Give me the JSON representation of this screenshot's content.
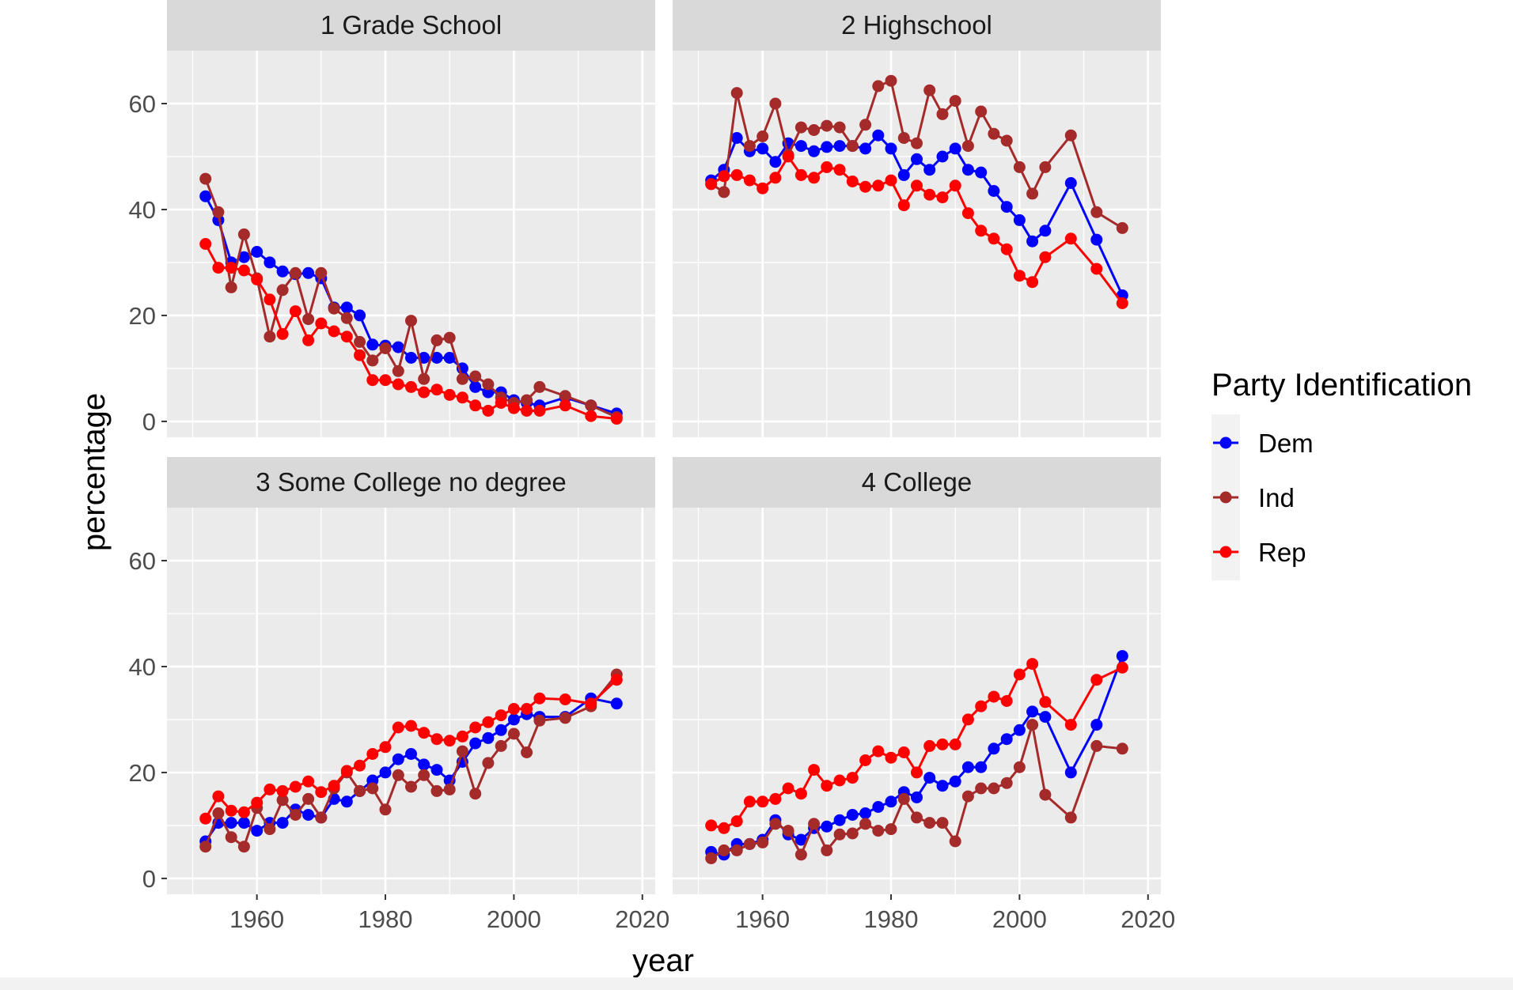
{
  "chart_data": {
    "type": "line",
    "xlabel": "year",
    "ylabel": "percentage",
    "xlim": [
      1946,
      2022
    ],
    "ylim": [
      -3,
      70
    ],
    "x_ticks": [
      1960,
      1980,
      2000,
      2020
    ],
    "y_ticks": [
      0,
      20,
      40,
      60
    ],
    "grid": true,
    "legend": {
      "title": "Party Identification",
      "position": "right"
    },
    "colors": {
      "Dem": "#0000ff",
      "Ind": "#a52a2a",
      "Rep": "#ff0000"
    },
    "series_names": [
      "Dem",
      "Ind",
      "Rep"
    ],
    "x": [
      1952,
      1954,
      1956,
      1958,
      1960,
      1962,
      1964,
      1966,
      1968,
      1970,
      1972,
      1974,
      1976,
      1978,
      1980,
      1982,
      1984,
      1986,
      1988,
      1990,
      1992,
      1994,
      1996,
      1998,
      2000,
      2002,
      2004,
      2008,
      2012,
      2016
    ],
    "panels": [
      {
        "title": "1 Grade School",
        "series": [
          {
            "name": "Dem",
            "values": [
              42.5,
              38,
              30,
              31,
              32,
              30,
              28.3,
              27.8,
              28,
              27,
              21.5,
              21.5,
              20,
              14.5,
              14.3,
              14,
              12,
              12,
              12,
              12,
              10,
              6.5,
              5.5,
              5.5,
              4,
              3.5,
              3,
              4.5,
              3,
              1.5
            ]
          },
          {
            "name": "Ind",
            "values": [
              45.8,
              39.5,
              25.3,
              35.3,
              27,
              16,
              24.8,
              28,
              19.3,
              28,
              21.3,
              19.5,
              15,
              11.5,
              13.8,
              9.5,
              19,
              8,
              15.3,
              15.8,
              8,
              8.5,
              7,
              4.5,
              3.5,
              4,
              6.5,
              4.8,
              3,
              0.8
            ]
          },
          {
            "name": "Rep",
            "values": [
              33.5,
              29,
              29,
              28.5,
              26.8,
              23,
              16.5,
              20.8,
              15.3,
              18.5,
              17,
              16,
              12.5,
              7.8,
              7.8,
              7,
              6.5,
              5.5,
              6,
              5,
              4.5,
              3,
              2,
              3.5,
              2.5,
              2,
              2,
              3,
              1,
              0.5
            ]
          }
        ]
      },
      {
        "title": "2 Highschool",
        "series": [
          {
            "name": "Dem",
            "values": [
              45.5,
              47.5,
              53.5,
              51,
              51.5,
              49,
              52.5,
              52,
              51,
              51.8,
              52,
              52,
              51.5,
              54,
              51.5,
              46.5,
              49.5,
              47.5,
              50,
              51.5,
              47.5,
              47,
              43.5,
              40.5,
              38,
              34,
              36,
              45,
              34.3,
              23.8
            ]
          },
          {
            "name": "Ind",
            "values": [
              44.8,
              43.3,
              62,
              52,
              53.8,
              60,
              50.3,
              55.5,
              55,
              55.8,
              55.5,
              52,
              56,
              63.3,
              64.3,
              53.5,
              52.5,
              62.5,
              58,
              60.5,
              52,
              58.5,
              54.3,
              53,
              48,
              43,
              48,
              54,
              39.5,
              36.5
            ]
          },
          {
            "name": "Rep",
            "values": [
              44.8,
              46.3,
              46.5,
              45.5,
              44,
              46,
              50,
              46.5,
              46,
              48,
              47.5,
              45.3,
              44.3,
              44.5,
              45.5,
              40.8,
              44.5,
              42.8,
              42.3,
              44.5,
              39.3,
              36,
              34.5,
              32.5,
              27.5,
              26.3,
              31,
              34.5,
              28.8,
              22.3
            ]
          }
        ]
      },
      {
        "title": "3 Some College no degree",
        "series": [
          {
            "name": "Dem",
            "values": [
              7,
              10.5,
              10.5,
              10.5,
              9,
              10.5,
              10.5,
              13,
              12,
              11.5,
              15,
              14.5,
              16.5,
              18.5,
              20,
              22.5,
              23.5,
              21.5,
              20.5,
              18.5,
              22,
              25.5,
              26.5,
              28,
              30,
              31,
              30.5,
              30.5,
              34,
              33
            ]
          },
          {
            "name": "Ind",
            "values": [
              6,
              12.3,
              7.8,
              6,
              13.3,
              9.3,
              14.8,
              12,
              15,
              11.5,
              17,
              20,
              16.5,
              17,
              13,
              19.5,
              17.3,
              19.5,
              16.5,
              16.8,
              24,
              16,
              21.8,
              25,
              27.3,
              23.8,
              29.8,
              30.3,
              32.5,
              38.5
            ]
          },
          {
            "name": "Rep",
            "values": [
              11.3,
              15.5,
              12.8,
              12.5,
              14.3,
              16.8,
              16.5,
              17.3,
              18.3,
              16.3,
              17.5,
              20.3,
              21.3,
              23.5,
              24.8,
              28.5,
              28.8,
              27.5,
              26.3,
              26,
              26.8,
              28.5,
              29.5,
              30.8,
              32,
              32,
              34,
              33.8,
              33,
              37.5
            ]
          }
        ]
      },
      {
        "title": "4 College",
        "series": [
          {
            "name": "Dem",
            "values": [
              5,
              4.5,
              6.5,
              6.5,
              7.3,
              11,
              8.3,
              7.3,
              9.5,
              9.8,
              11,
              12,
              12.3,
              13.5,
              14.5,
              16.3,
              15.3,
              19,
              17.5,
              18.3,
              21,
              21,
              24.5,
              26.3,
              28,
              31.5,
              30.5,
              20,
              29,
              42
            ]
          },
          {
            "name": "Ind",
            "values": [
              3.8,
              5.3,
              5.3,
              6.5,
              6.8,
              10.3,
              9,
              4.5,
              10.3,
              5.3,
              8.3,
              8.5,
              10.3,
              9,
              9.3,
              15,
              11.5,
              10.5,
              10.5,
              7,
              15.5,
              17,
              17,
              18,
              21,
              29,
              15.8,
              11.5,
              25,
              24.5
            ]
          },
          {
            "name": "Rep",
            "values": [
              10,
              9.5,
              10.8,
              14.5,
              14.5,
              15,
              17,
              16,
              20.5,
              17.5,
              18.5,
              19,
              22.3,
              24,
              22.8,
              23.8,
              20,
              25,
              25.3,
              25.3,
              30,
              32.5,
              34.3,
              33.5,
              38.5,
              40.5,
              33.3,
              29,
              37.5,
              39.8
            ]
          }
        ]
      }
    ]
  }
}
